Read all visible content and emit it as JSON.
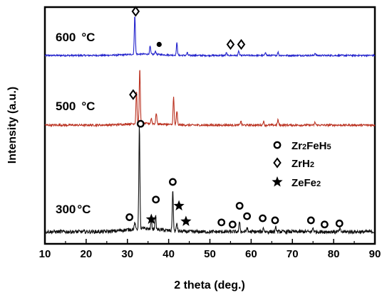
{
  "chart_data": {
    "type": "line",
    "xlabel": "2 theta (deg.)",
    "ylabel": "Intensity (a.u.)",
    "xlim": [
      10,
      90
    ],
    "x_ticks": [
      "10",
      "20",
      "30",
      "40",
      "50",
      "60",
      "70",
      "80",
      "90"
    ],
    "y_ticks_shown": false,
    "legend": {
      "position": "right-center",
      "entries": [
        {
          "marker": "circle",
          "label_parts": [
            "Zr",
            "2",
            "FeH",
            "5"
          ]
        },
        {
          "marker": "diamond",
          "label_parts": [
            "ZrH",
            "2"
          ]
        },
        {
          "marker": "star",
          "label_parts": [
            "ZeFe",
            "2"
          ]
        }
      ]
    },
    "series": [
      {
        "name": "600 °C",
        "label_main": "600",
        "label_unit": "°C",
        "color": "#2222cc",
        "baseline": 0.0,
        "peaks": [
          {
            "x": 31.8,
            "h": 0.9
          },
          {
            "x": 35.5,
            "h": 0.18
          },
          {
            "x": 36.8,
            "h": 0.08
          },
          {
            "x": 42.0,
            "h": 0.28
          },
          {
            "x": 44.5,
            "h": 0.06
          },
          {
            "x": 54.0,
            "h": 0.06
          },
          {
            "x": 57.0,
            "h": 0.1
          },
          {
            "x": 63.5,
            "h": 0.08
          },
          {
            "x": 66.5,
            "h": 0.08
          },
          {
            "x": 75.5,
            "h": 0.05
          }
        ],
        "markers": [
          {
            "type": "diamond",
            "x": 32.0,
            "y": 1.0
          },
          {
            "type": "dot",
            "x": 37.7,
            "y": 0.25
          },
          {
            "type": "diamond",
            "x": 55.0,
            "y": 0.25
          },
          {
            "type": "diamond",
            "x": 57.6,
            "y": 0.25
          }
        ]
      },
      {
        "name": "500 °C",
        "label_main": "500",
        "label_unit": "°C",
        "color": "#bb3322",
        "baseline": 0.0,
        "peaks": [
          {
            "x": 32.2,
            "h": 0.6
          },
          {
            "x": 33.0,
            "h": 1.0
          },
          {
            "x": 35.8,
            "h": 0.1
          },
          {
            "x": 37.0,
            "h": 0.2
          },
          {
            "x": 41.2,
            "h": 0.5
          },
          {
            "x": 42.0,
            "h": 0.25
          },
          {
            "x": 57.5,
            "h": 0.08
          },
          {
            "x": 63.0,
            "h": 0.07
          },
          {
            "x": 66.5,
            "h": 0.1
          },
          {
            "x": 75.5,
            "h": 0.05
          }
        ],
        "markers": [
          {
            "type": "diamond",
            "x": 31.4,
            "y": 0.55
          }
        ]
      },
      {
        "name": "300 °C",
        "label_main": "300",
        "label_unit": "°C",
        "color": "#111111",
        "baseline": 0.0,
        "peaks": [
          {
            "x": 31.8,
            "h": 0.06
          },
          {
            "x": 32.9,
            "h": 1.0
          },
          {
            "x": 35.8,
            "h": 0.08
          },
          {
            "x": 36.8,
            "h": 0.14
          },
          {
            "x": 41.0,
            "h": 0.4
          },
          {
            "x": 42.0,
            "h": 0.08
          },
          {
            "x": 57.2,
            "h": 0.1
          },
          {
            "x": 59.0,
            "h": 0.04
          },
          {
            "x": 63.0,
            "h": 0.04
          },
          {
            "x": 66.0,
            "h": 0.04
          },
          {
            "x": 75.0,
            "h": 0.04
          },
          {
            "x": 81.5,
            "h": 0.03
          }
        ],
        "markers": [
          {
            "type": "circle",
            "x": 33.2,
            "y": 1.04
          },
          {
            "type": "circle",
            "x": 30.5,
            "y": 0.14
          },
          {
            "type": "star",
            "x": 35.8,
            "y": 0.12
          },
          {
            "type": "circle",
            "x": 36.9,
            "y": 0.31
          },
          {
            "type": "circle",
            "x": 41.0,
            "y": 0.48
          },
          {
            "type": "star",
            "x": 42.5,
            "y": 0.25
          },
          {
            "type": "star",
            "x": 44.2,
            "y": 0.1
          },
          {
            "type": "circle",
            "x": 52.8,
            "y": 0.09
          },
          {
            "type": "circle",
            "x": 55.5,
            "y": 0.07
          },
          {
            "type": "circle",
            "x": 57.2,
            "y": 0.25
          },
          {
            "type": "circle",
            "x": 59.0,
            "y": 0.15
          },
          {
            "type": "circle",
            "x": 62.8,
            "y": 0.13
          },
          {
            "type": "circle",
            "x": 65.8,
            "y": 0.11
          },
          {
            "type": "circle",
            "x": 74.5,
            "y": 0.11
          },
          {
            "type": "circle",
            "x": 77.8,
            "y": 0.07
          },
          {
            "type": "circle",
            "x": 81.4,
            "y": 0.08
          }
        ]
      }
    ]
  }
}
